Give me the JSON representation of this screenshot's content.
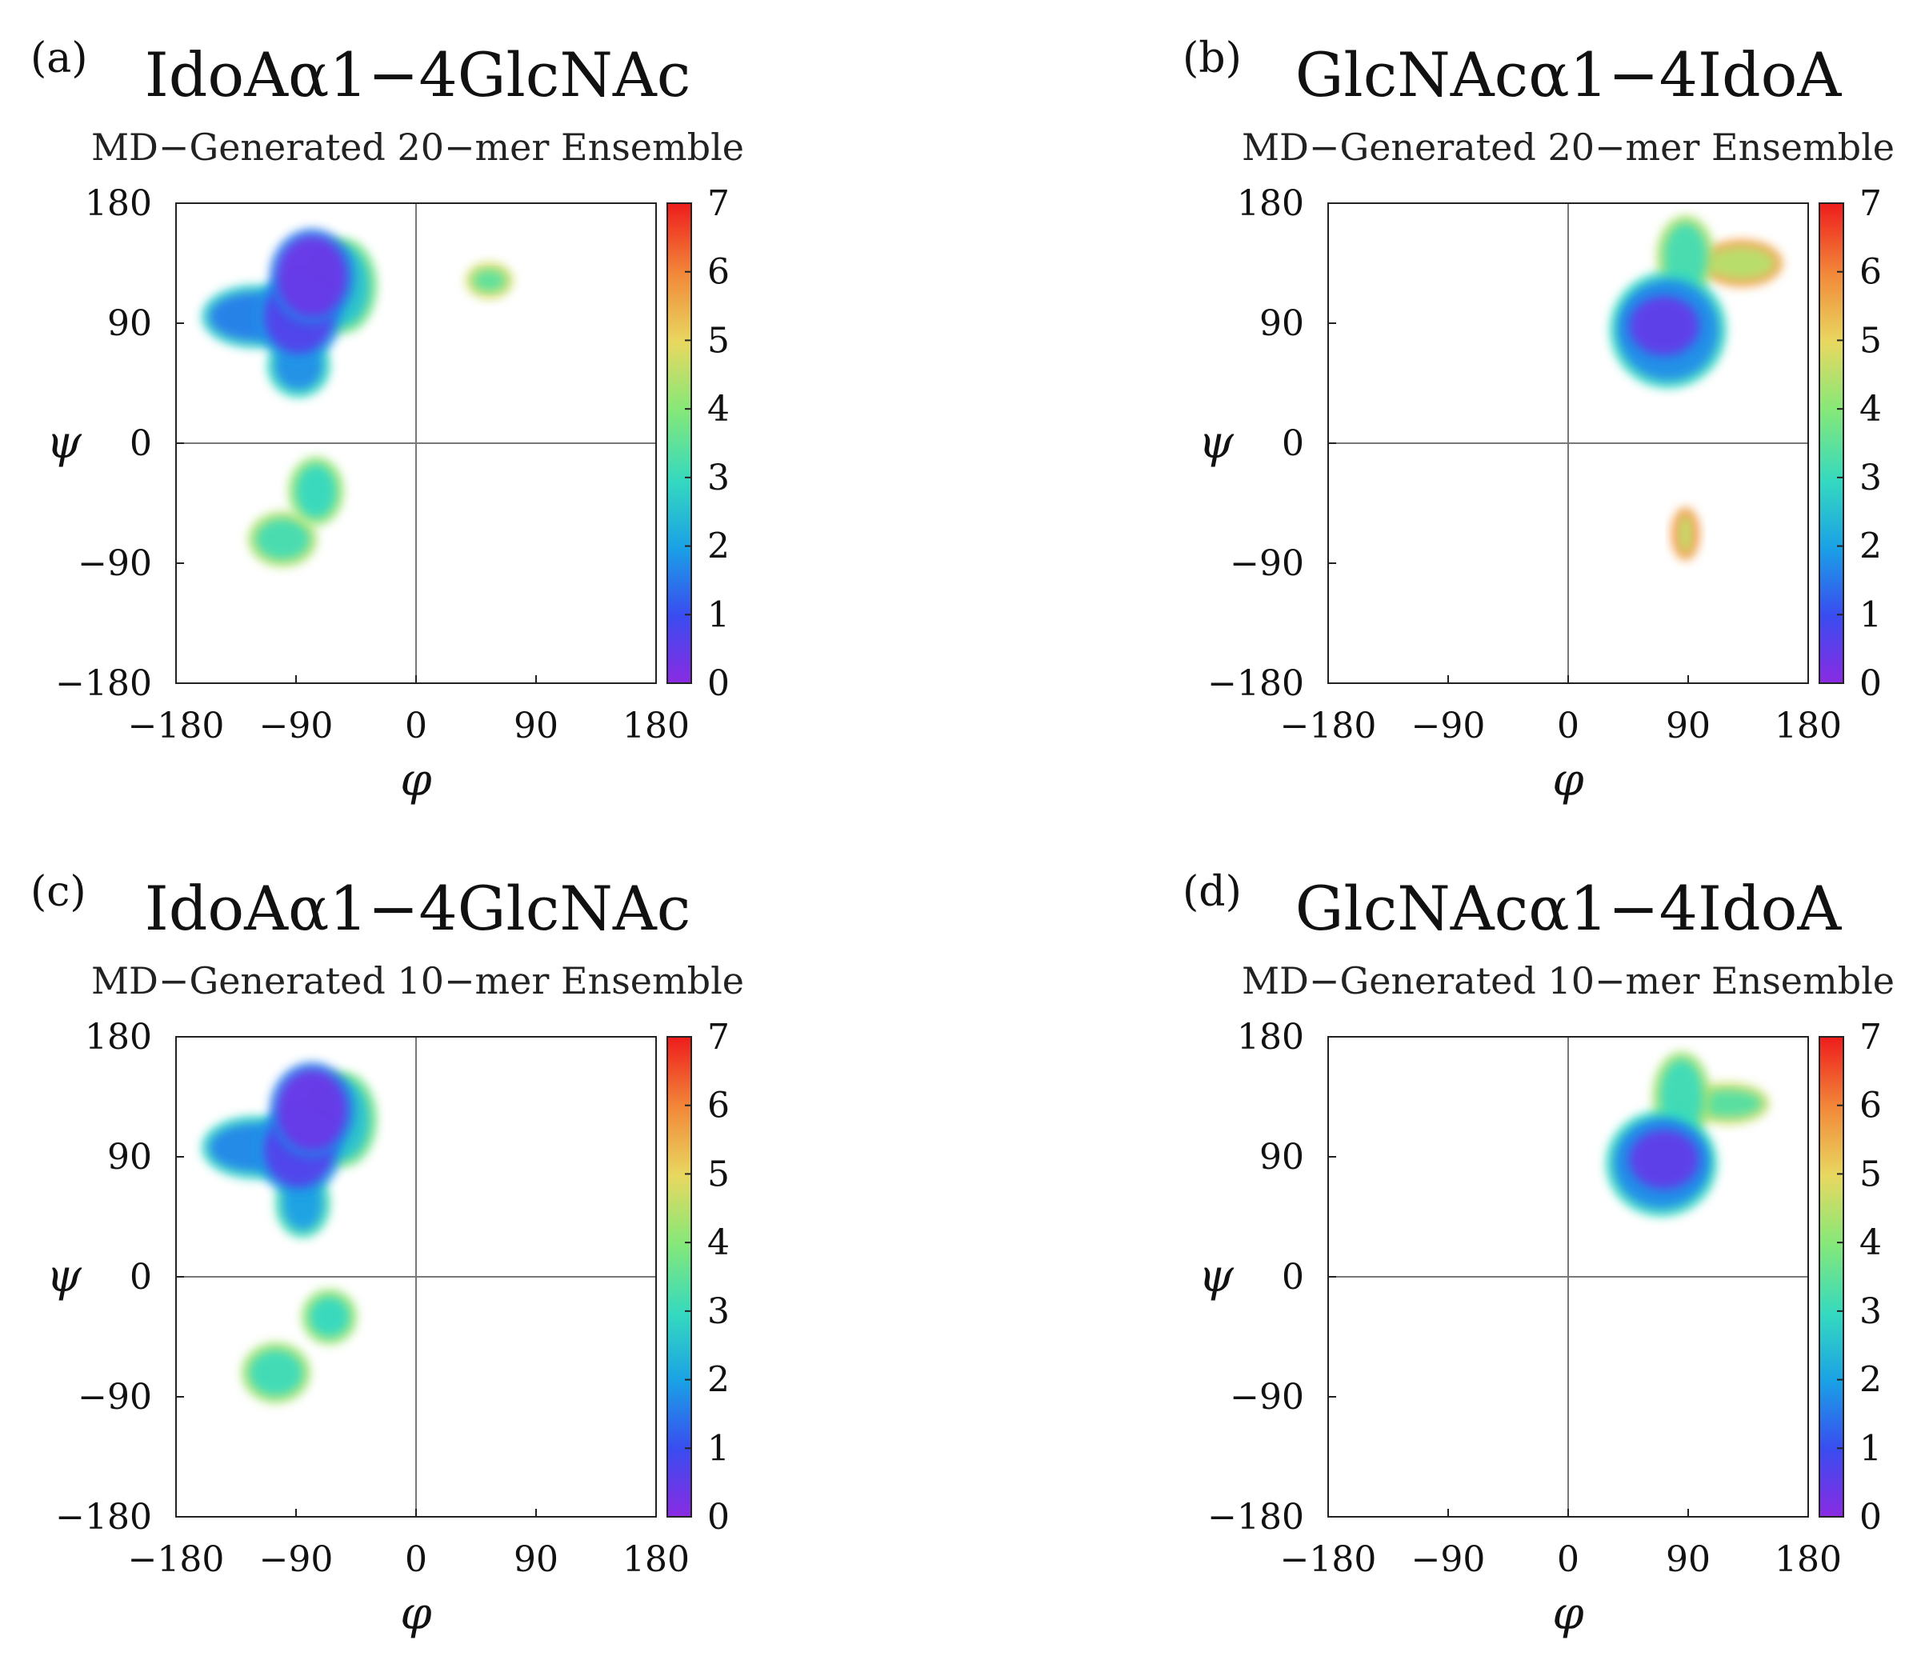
{
  "chart_data": [
    {
      "type": "heatmap",
      "panel_label": "(a)",
      "title": "IdoAα1−4GlcNAc",
      "subtitle": "MD−Generated 20−mer Ensemble",
      "xlabel": "φ",
      "ylabel": "ψ",
      "xlim": [
        -180,
        180
      ],
      "ylim": [
        -180,
        180
      ],
      "xticks": [
        "−180",
        "−90",
        "0",
        "90",
        "180"
      ],
      "yticks": [
        "180",
        "90",
        "0",
        "−90",
        "−180"
      ],
      "colorbar": {
        "min": 0,
        "max": 7,
        "ticks": [
          "0",
          "1",
          "2",
          "3",
          "4",
          "5",
          "6",
          "7"
        ]
      },
      "regions": [
        {
          "cx": -78,
          "cy": 125,
          "rx": 26,
          "ry": 30,
          "level": 0.4
        },
        {
          "cx": -88,
          "cy": 95,
          "rx": 26,
          "ry": 28,
          "level": 0.7
        },
        {
          "cx": -120,
          "cy": 95,
          "rx": 35,
          "ry": 18,
          "level": 1.6
        },
        {
          "cx": -88,
          "cy": 58,
          "rx": 18,
          "ry": 18,
          "level": 1.8
        },
        {
          "cx": -55,
          "cy": 118,
          "rx": 20,
          "ry": 30,
          "level": 2.6
        },
        {
          "cx": -75,
          "cy": -36,
          "rx": 15,
          "ry": 20,
          "level": 3.0
        },
        {
          "cx": -100,
          "cy": -72,
          "rx": 20,
          "ry": 15,
          "level": 3.2
        },
        {
          "cx": 55,
          "cy": 122,
          "rx": 12,
          "ry": 8,
          "level": 3.5
        }
      ]
    },
    {
      "type": "heatmap",
      "panel_label": "(b)",
      "title": "GlcNAcα1−4IdoA",
      "subtitle": "MD−Generated 20−mer Ensemble",
      "xlabel": "φ",
      "ylabel": "ψ",
      "xlim": [
        -180,
        180
      ],
      "ylim": [
        -180,
        180
      ],
      "xticks": [
        "−180",
        "−90",
        "0",
        "90",
        "180"
      ],
      "yticks": [
        "180",
        "90",
        "0",
        "−90",
        "−180"
      ],
      "colorbar": {
        "min": 0,
        "max": 7,
        "ticks": [
          "0",
          "1",
          "2",
          "3",
          "4",
          "5",
          "6",
          "7"
        ]
      },
      "regions": [
        {
          "cx": 72,
          "cy": 88,
          "rx": 26,
          "ry": 22,
          "level": 0.5
        },
        {
          "cx": 75,
          "cy": 85,
          "rx": 38,
          "ry": 38,
          "level": 1.8
        },
        {
          "cx": 88,
          "cy": 140,
          "rx": 16,
          "ry": 25,
          "level": 3.2
        },
        {
          "cx": 130,
          "cy": 135,
          "rx": 25,
          "ry": 12,
          "level": 4.5
        },
        {
          "cx": 88,
          "cy": -68,
          "rx": 5,
          "ry": 14,
          "level": 4.6
        }
      ]
    },
    {
      "type": "heatmap",
      "panel_label": "(c)",
      "title": "IdoAα1−4GlcNAc",
      "subtitle": "MD−Generated 10−mer Ensemble",
      "xlabel": "φ",
      "ylabel": "ψ",
      "xlim": [
        -180,
        180
      ],
      "ylim": [
        -180,
        180
      ],
      "xticks": [
        "−180",
        "−90",
        "0",
        "90",
        "180"
      ],
      "yticks": [
        "180",
        "90",
        "0",
        "−90",
        "−180"
      ],
      "colorbar": {
        "min": 0,
        "max": 7,
        "ticks": [
          "0",
          "1",
          "2",
          "3",
          "4",
          "5",
          "6",
          "7"
        ]
      },
      "regions": [
        {
          "cx": -78,
          "cy": 125,
          "rx": 26,
          "ry": 30,
          "level": 0.4
        },
        {
          "cx": -88,
          "cy": 95,
          "rx": 26,
          "ry": 28,
          "level": 0.7
        },
        {
          "cx": -120,
          "cy": 97,
          "rx": 35,
          "ry": 18,
          "level": 1.7
        },
        {
          "cx": -85,
          "cy": 55,
          "rx": 15,
          "ry": 20,
          "level": 2.0
        },
        {
          "cx": -55,
          "cy": 118,
          "rx": 20,
          "ry": 30,
          "level": 2.6
        },
        {
          "cx": -65,
          "cy": -30,
          "rx": 15,
          "ry": 15,
          "level": 3.0
        },
        {
          "cx": -105,
          "cy": -72,
          "rx": 20,
          "ry": 17,
          "level": 3.1
        }
      ]
    },
    {
      "type": "heatmap",
      "panel_label": "(d)",
      "title": "GlcNAcα1−4IdoA",
      "subtitle": "MD−Generated 10−mer Ensemble",
      "xlabel": "φ",
      "ylabel": "ψ",
      "xlim": [
        -180,
        180
      ],
      "ylim": [
        -180,
        180
      ],
      "xticks": [
        "−180",
        "−90",
        "0",
        "90",
        "180"
      ],
      "yticks": [
        "180",
        "90",
        "0",
        "−90",
        "−180"
      ],
      "colorbar": {
        "min": 0,
        "max": 7,
        "ticks": [
          "0",
          "1",
          "2",
          "3",
          "4",
          "5",
          "6",
          "7"
        ]
      },
      "regions": [
        {
          "cx": 72,
          "cy": 88,
          "rx": 26,
          "ry": 22,
          "level": 0.5
        },
        {
          "cx": 70,
          "cy": 85,
          "rx": 36,
          "ry": 34,
          "level": 1.8
        },
        {
          "cx": 85,
          "cy": 135,
          "rx": 16,
          "ry": 28,
          "level": 3.1
        },
        {
          "cx": 120,
          "cy": 130,
          "rx": 25,
          "ry": 10,
          "level": 3.4
        }
      ]
    }
  ]
}
